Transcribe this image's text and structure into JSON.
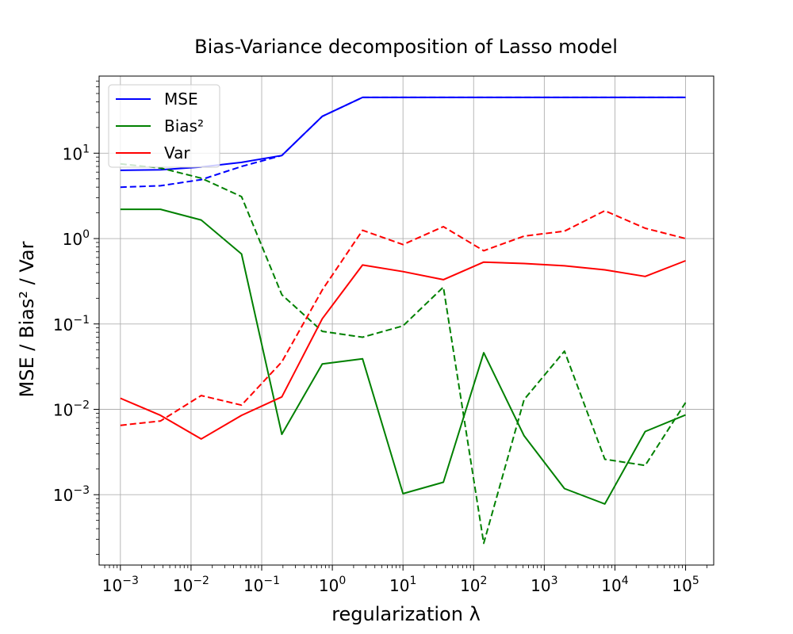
{
  "chart_data": {
    "type": "line",
    "title": "Bias-Variance decomposition of Lasso model",
    "xlabel": "regularization λ",
    "ylabel": "MSE / Bias² / Var",
    "xscale": "log",
    "yscale": "log",
    "xlim": [
      0.0005,
      250000
    ],
    "ylim": [
      0.00015,
      80
    ],
    "grid": true,
    "legend": "top-left",
    "x": [
      0.001,
      0.0037,
      0.0139,
      0.0518,
      0.193,
      0.72,
      2.68,
      10,
      37.3,
      139,
      518,
      1930,
      7200,
      26800,
      100000
    ],
    "xticks": [
      {
        "value": 0.001,
        "base": "10",
        "exp": "−3"
      },
      {
        "value": 0.01,
        "base": "10",
        "exp": "−2"
      },
      {
        "value": 0.1,
        "base": "10",
        "exp": "−1"
      },
      {
        "value": 1,
        "base": "10",
        "exp": "0"
      },
      {
        "value": 10,
        "base": "10",
        "exp": "1"
      },
      {
        "value": 100,
        "base": "10",
        "exp": "2"
      },
      {
        "value": 1000,
        "base": "10",
        "exp": "3"
      },
      {
        "value": 10000,
        "base": "10",
        "exp": "4"
      },
      {
        "value": 100000,
        "base": "10",
        "exp": "5"
      }
    ],
    "yticks": [
      {
        "value": 0.001,
        "base": "10",
        "exp": "−3"
      },
      {
        "value": 0.01,
        "base": "10",
        "exp": "−2"
      },
      {
        "value": 0.1,
        "base": "10",
        "exp": "−1"
      },
      {
        "value": 1,
        "base": "10",
        "exp": "0"
      },
      {
        "value": 10,
        "base": "10",
        "exp": "1"
      }
    ],
    "series": [
      {
        "name": "MSE",
        "color": "#0000ff",
        "style": "solid",
        "values": [
          6.3,
          6.4,
          6.9,
          7.8,
          9.4,
          27,
          45,
          45,
          45,
          45,
          45,
          45,
          45,
          45,
          45
        ]
      },
      {
        "name": "MSE",
        "color": "#0000ff",
        "style": "dashed",
        "values": [
          4.0,
          4.15,
          4.9,
          7.0,
          9.4,
          27,
          45,
          45,
          45,
          45,
          45,
          45,
          45,
          45,
          45
        ]
      },
      {
        "name": "Bias²",
        "color": "#008000",
        "style": "solid",
        "values": [
          2.2,
          2.2,
          1.65,
          0.66,
          0.0051,
          0.034,
          0.039,
          0.00103,
          0.0014,
          0.046,
          0.0049,
          0.00118,
          0.00078,
          0.0055,
          0.0086
        ]
      },
      {
        "name": "Bias²",
        "color": "#008000",
        "style": "dashed",
        "values": [
          7.5,
          6.7,
          5.1,
          3.1,
          0.22,
          0.082,
          0.07,
          0.095,
          0.27,
          0.00027,
          0.013,
          0.048,
          0.0026,
          0.0022,
          0.012
        ]
      },
      {
        "name": "Var",
        "color": "#ff0000",
        "style": "solid",
        "values": [
          0.0135,
          0.0085,
          0.0045,
          0.0085,
          0.014,
          0.115,
          0.49,
          0.41,
          0.33,
          0.53,
          0.51,
          0.48,
          0.43,
          0.36,
          0.55
        ]
      },
      {
        "name": "Var",
        "color": "#ff0000",
        "style": "dashed",
        "values": [
          0.0065,
          0.0073,
          0.0145,
          0.0112,
          0.036,
          0.25,
          1.25,
          0.85,
          1.38,
          0.72,
          1.07,
          1.22,
          2.12,
          1.32,
          1.0
        ]
      }
    ],
    "legend_entries": [
      {
        "label": "MSE",
        "color": "#0000ff"
      },
      {
        "label": "Bias²",
        "color": "#008000"
      },
      {
        "label": "Var",
        "color": "#ff0000"
      }
    ]
  }
}
